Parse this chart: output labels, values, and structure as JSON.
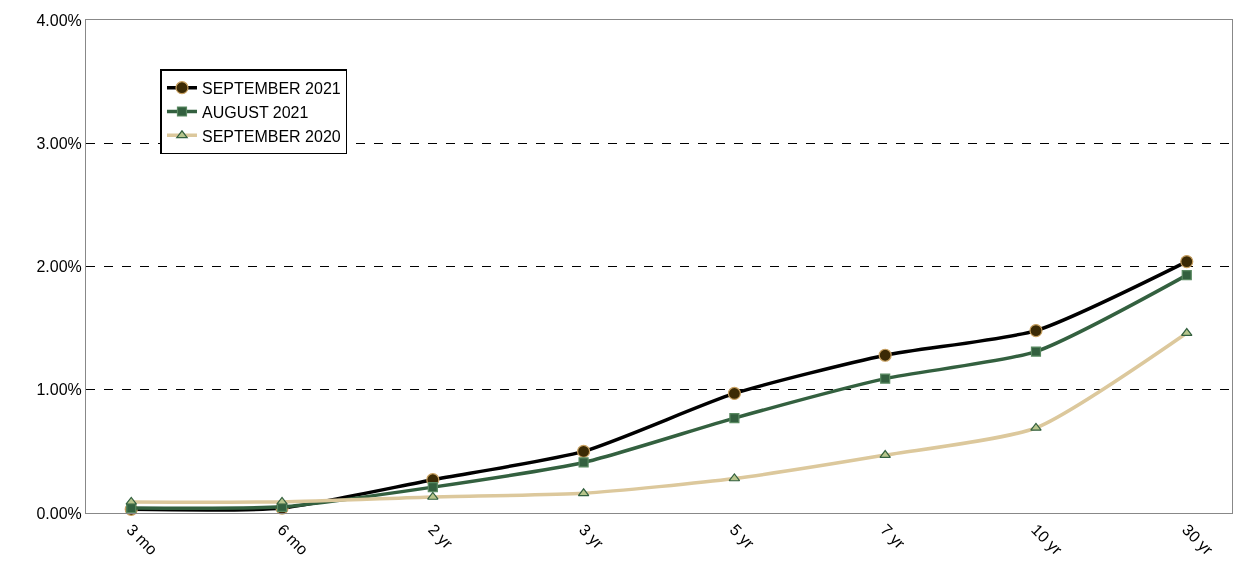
{
  "chart_data": {
    "type": "line",
    "categories": [
      "3 mo",
      "6 mo",
      "2 yr",
      "3 yr",
      "5 yr",
      "7 yr",
      "10 yr",
      "30 yr"
    ],
    "series": [
      {
        "name": "SEPTEMBER 2021",
        "color": "#000000",
        "marker": "circle",
        "values": [
          0.03,
          0.04,
          0.27,
          0.5,
          0.97,
          1.28,
          1.48,
          2.04
        ]
      },
      {
        "name": "AUGUST 2021",
        "color": "#33603f",
        "marker": "square",
        "values": [
          0.04,
          0.05,
          0.21,
          0.41,
          0.77,
          1.09,
          1.31,
          1.93
        ]
      },
      {
        "name": "SEPTEMBER 2020",
        "color": "#dcc89c",
        "marker": "triangle",
        "values": [
          0.09,
          0.09,
          0.13,
          0.16,
          0.28,
          0.47,
          0.69,
          1.46
        ]
      }
    ],
    "ylim": [
      0,
      4
    ],
    "yticks": [
      {
        "value": 0,
        "label": "0.00%"
      },
      {
        "value": 1,
        "label": "1.00%"
      },
      {
        "value": 2,
        "label": "2.00%"
      },
      {
        "value": 3,
        "label": "3.00%"
      },
      {
        "value": 4,
        "label": "4.00%"
      }
    ],
    "grid": "y",
    "legend": "top left",
    "line_style": "solid"
  }
}
